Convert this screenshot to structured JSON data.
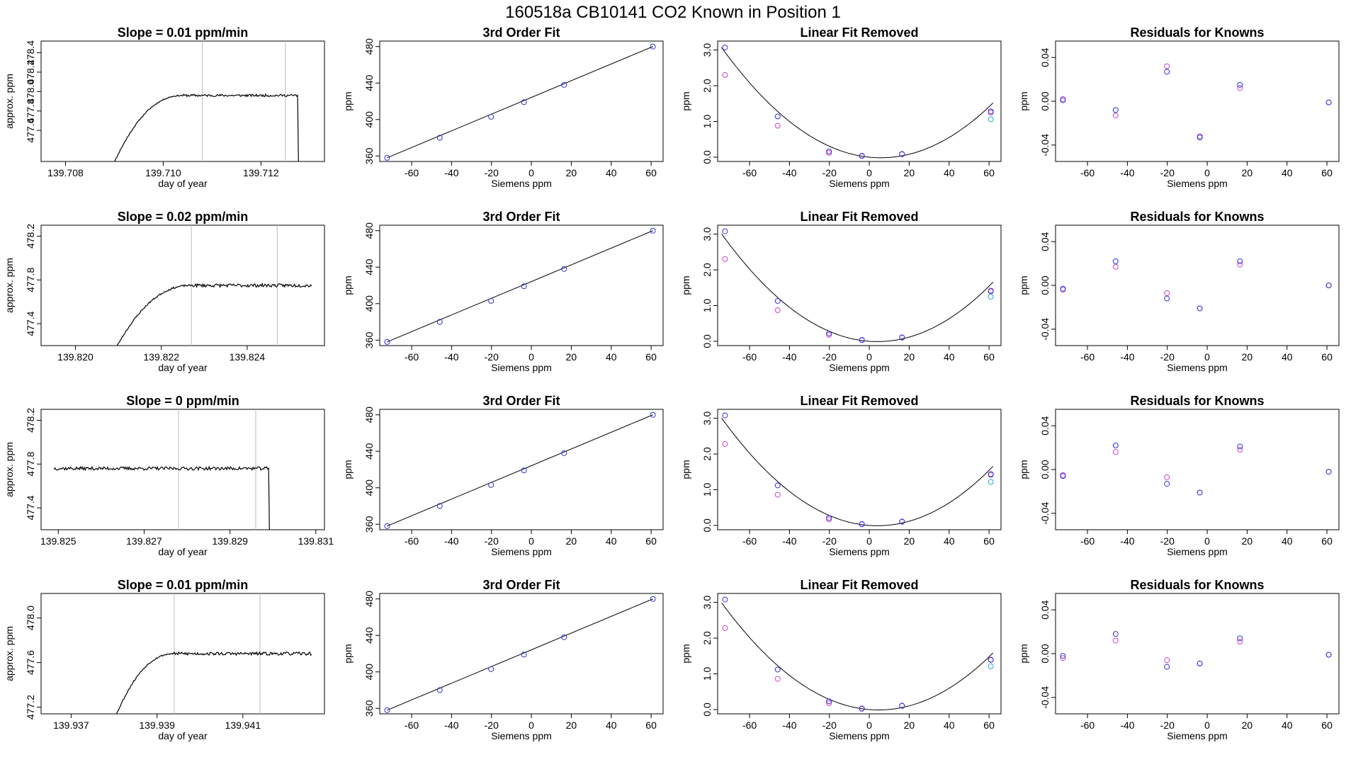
{
  "figure": {
    "title": "160518a     CB10141    CO2 Known in Position  1"
  },
  "colors": {
    "blue": "#3333dd",
    "magenta": "#cc44cc",
    "cyan": "#22aacc",
    "trace": "#000000",
    "trace_highlight": "#ff4444",
    "vline": "#bbbbbb"
  },
  "chart_data": [
    {
      "row": 0,
      "col": 0,
      "type": "line",
      "title": "Slope =  0.01  ppm/min",
      "xlabel": "day of year",
      "ylabel": "approx. ppm",
      "xlim": [
        139.7075,
        139.7133
      ],
      "ylim": [
        477.28,
        478.52
      ],
      "xticks": [
        139.708,
        139.71,
        139.712
      ],
      "xticklabels": [
        "139.708",
        "139.710",
        "139.712"
      ],
      "yticks": [
        477.6,
        477.8,
        478.0,
        478.2,
        478.4
      ],
      "yticklabels": [
        "477.6",
        "477.8",
        "478.0",
        "478.2",
        "478.4"
      ],
      "vlines": [
        139.7108,
        139.7125
      ],
      "trace": {
        "kind": "drop",
        "x_start": 139.70895,
        "rise_end": 139.7104,
        "plateau": 477.96,
        "drop_x": 139.71275,
        "noise": 0.012,
        "seed": 11
      }
    },
    {
      "row": 0,
      "col": 1,
      "type": "scatter",
      "title": "3rd Order Fit",
      "xlabel": "Siemens ppm",
      "ylabel": "ppm",
      "xlim": [
        -76,
        66
      ],
      "ylim": [
        354,
        486
      ],
      "xticks": [
        -60,
        -40,
        -20,
        0,
        20,
        40,
        60
      ],
      "xticklabels": [
        "-60",
        "-40",
        "-20",
        "0",
        "20",
        "40",
        "60"
      ],
      "yticks": [
        360,
        400,
        440,
        480
      ],
      "yticklabels": [
        "360",
        "400",
        "440",
        "480"
      ],
      "points_x": [
        -72.3,
        -45.9,
        -20.2,
        -3.7,
        16.4,
        60.9
      ],
      "points_y": [
        358,
        380,
        403,
        419,
        438,
        480
      ],
      "line": [
        [
          -72.3,
          358
        ],
        [
          60.9,
          480
        ]
      ]
    },
    {
      "row": 0,
      "col": 2,
      "type": "scatter",
      "title": "Linear Fit Removed",
      "xlabel": "Siemens ppm",
      "ylabel": "ppm",
      "xlim": [
        -76,
        66
      ],
      "ylim": [
        -0.12,
        3.25
      ],
      "xticks": [
        -60,
        -40,
        -20,
        0,
        20,
        40,
        60
      ],
      "xticklabels": [
        "-60",
        "-40",
        "-20",
        "0",
        "20",
        "40",
        "60"
      ],
      "yticks": [
        0,
        1,
        2,
        3
      ],
      "yticklabels": [
        "0.0",
        "1.0",
        "2.0",
        "3.0"
      ],
      "points_x": [
        -72.3,
        -45.9,
        -20.2,
        -3.7,
        16.4,
        60.9
      ],
      "blue_y": [
        3.07,
        1.14,
        0.16,
        0.04,
        0.09,
        1.28
      ],
      "magenta_y": [
        2.3,
        0.88,
        0.12,
        0.03,
        0.08,
        1.25
      ],
      "cyan": {
        "x": 60.9,
        "y": 1.06
      },
      "curve": {
        "a": 0.000485,
        "b": -0.0056,
        "c": 0.0
      }
    },
    {
      "row": 0,
      "col": 3,
      "type": "scatter",
      "title": "Residuals for Knowns",
      "xlabel": "Siemens ppm",
      "ylabel": "ppm",
      "xlim": [
        -76,
        66
      ],
      "ylim": [
        -0.055,
        0.055
      ],
      "xticks": [
        -60,
        -40,
        -20,
        0,
        20,
        40,
        60
      ],
      "xticklabels": [
        "-60",
        "-40",
        "-20",
        "0",
        "20",
        "40",
        "60"
      ],
      "yticks": [
        -0.04,
        0,
        0.04
      ],
      "yticklabels": [
        "-0.04",
        "0.00",
        "0.04"
      ],
      "points_x": [
        -72.3,
        -45.9,
        -20.2,
        -3.7,
        16.4,
        60.9
      ],
      "blue_y": [
        0.001,
        -0.008,
        0.027,
        -0.033,
        0.015,
        -0.001
      ],
      "magenta_y": [
        0.002,
        -0.013,
        0.032,
        -0.032,
        0.012,
        -0.001
      ]
    },
    {
      "row": 1,
      "col": 0,
      "type": "line",
      "title": "Slope =  0.02  ppm/min",
      "xlabel": "day of year",
      "ylabel": "approx. ppm",
      "xlim": [
        139.8192,
        139.8258
      ],
      "ylim": [
        477.2,
        478.3
      ],
      "xticks": [
        139.82,
        139.822,
        139.824
      ],
      "xticklabels": [
        "139.820",
        "139.822",
        "139.824"
      ],
      "yticks": [
        477.4,
        477.8,
        478.2
      ],
      "yticklabels": [
        "477.4",
        "477.8",
        "478.2"
      ],
      "vlines": [
        139.8227,
        139.8247
      ],
      "trace": {
        "kind": "flat_end",
        "x_start": 139.8209,
        "rise_end": 139.8227,
        "plateau": 477.75,
        "end_x": 139.8255,
        "noise": 0.015,
        "seed": 23
      }
    },
    {
      "row": 1,
      "col": 1,
      "type": "scatter",
      "title": "3rd Order Fit",
      "xlabel": "Siemens ppm",
      "ylabel": "ppm",
      "xlim": [
        -76,
        66
      ],
      "ylim": [
        354,
        486
      ],
      "xticks": [
        -60,
        -40,
        -20,
        0,
        20,
        40,
        60
      ],
      "xticklabels": [
        "-60",
        "-40",
        "-20",
        "0",
        "20",
        "40",
        "60"
      ],
      "yticks": [
        360,
        400,
        440,
        480
      ],
      "yticklabels": [
        "360",
        "400",
        "440",
        "480"
      ],
      "points_x": [
        -72.3,
        -45.9,
        -20.2,
        -3.7,
        16.4,
        60.9
      ],
      "points_y": [
        358,
        380,
        403,
        419,
        438,
        480
      ],
      "line": [
        [
          -72.3,
          358
        ],
        [
          60.9,
          480
        ]
      ]
    },
    {
      "row": 1,
      "col": 2,
      "type": "scatter",
      "title": "Linear Fit Removed",
      "xlabel": "Siemens ppm",
      "ylabel": "ppm",
      "xlim": [
        -76,
        66
      ],
      "ylim": [
        -0.12,
        3.25
      ],
      "xticks": [
        -60,
        -40,
        -20,
        0,
        20,
        40,
        60
      ],
      "xticklabels": [
        "-60",
        "-40",
        "-20",
        "0",
        "20",
        "40",
        "60"
      ],
      "yticks": [
        0,
        1,
        2,
        3
      ],
      "yticklabels": [
        "0.0",
        "1.0",
        "2.0",
        "3.0"
      ],
      "points_x": [
        -72.3,
        -45.9,
        -20.2,
        -3.7,
        16.4,
        60.9
      ],
      "blue_y": [
        3.08,
        1.13,
        0.22,
        0.04,
        0.11,
        1.4
      ],
      "magenta_y": [
        2.3,
        0.87,
        0.18,
        0.03,
        0.1,
        1.42
      ],
      "cyan": {
        "x": 60.9,
        "y": 1.25
      },
      "curve": {
        "a": 0.000495,
        "b": -0.004,
        "c": 0.0
      }
    },
    {
      "row": 1,
      "col": 3,
      "type": "scatter",
      "title": "Residuals for Knowns",
      "xlabel": "Siemens ppm",
      "ylabel": "ppm",
      "xlim": [
        -76,
        66
      ],
      "ylim": [
        -0.055,
        0.055
      ],
      "xticks": [
        -60,
        -40,
        -20,
        0,
        20,
        40,
        60
      ],
      "xticklabels": [
        "-60",
        "-40",
        "-20",
        "0",
        "20",
        "40",
        "60"
      ],
      "yticks": [
        -0.04,
        0,
        0.04
      ],
      "yticklabels": [
        "-0.04",
        "0.00",
        "0.04"
      ],
      "points_x": [
        -72.3,
        -45.9,
        -20.2,
        -3.7,
        16.4,
        60.9
      ],
      "blue_y": [
        -0.003,
        0.022,
        -0.012,
        -0.021,
        0.022,
        0.0
      ],
      "magenta_y": [
        -0.004,
        0.017,
        -0.007,
        -0.021,
        0.019,
        0.0
      ]
    },
    {
      "row": 2,
      "col": 0,
      "type": "line",
      "title": "Slope =  0  ppm/min",
      "xlabel": "day of year",
      "ylabel": "approx. ppm",
      "xlim": [
        139.8246,
        139.8312
      ],
      "ylim": [
        477.2,
        478.3
      ],
      "xticks": [
        139.825,
        139.827,
        139.829,
        139.831
      ],
      "xticklabels": [
        "139.825",
        "139.827",
        "139.829",
        "139.831"
      ],
      "vlines": [
        139.8278,
        139.8296
      ],
      "yticks": [
        477.4,
        477.8,
        478.2
      ],
      "yticklabels": [
        "477.4",
        "477.8",
        "478.2"
      ],
      "trace": {
        "kind": "flat_drop",
        "x_start": 139.8249,
        "plateau": 477.76,
        "drop_x": 139.8299,
        "noise": 0.015,
        "seed": 37
      }
    },
    {
      "row": 2,
      "col": 1,
      "type": "scatter",
      "title": "3rd Order Fit",
      "xlabel": "Siemens ppm",
      "ylabel": "ppm",
      "xlim": [
        -76,
        66
      ],
      "ylim": [
        354,
        486
      ],
      "xticks": [
        -60,
        -40,
        -20,
        0,
        20,
        40,
        60
      ],
      "xticklabels": [
        "-60",
        "-40",
        "-20",
        "0",
        "20",
        "40",
        "60"
      ],
      "yticks": [
        360,
        400,
        440,
        480
      ],
      "yticklabels": [
        "360",
        "400",
        "440",
        "480"
      ],
      "points_x": [
        -72.3,
        -45.9,
        -20.2,
        -3.7,
        16.4,
        60.9
      ],
      "points_y": [
        358,
        380,
        403,
        419,
        438,
        480
      ],
      "line": [
        [
          -72.3,
          358
        ],
        [
          60.9,
          480
        ]
      ]
    },
    {
      "row": 2,
      "col": 2,
      "type": "scatter",
      "title": "Linear Fit Removed",
      "xlabel": "Siemens ppm",
      "ylabel": "ppm",
      "xlim": [
        -76,
        66
      ],
      "ylim": [
        -0.12,
        3.25
      ],
      "xticks": [
        -60,
        -40,
        -20,
        0,
        20,
        40,
        60
      ],
      "xticklabels": [
        "-60",
        "-40",
        "-20",
        "0",
        "20",
        "40",
        "60"
      ],
      "yticks": [
        0,
        1,
        2,
        3
      ],
      "yticklabels": [
        "0.0",
        "1.0",
        "2.0",
        "3.0"
      ],
      "points_x": [
        -72.3,
        -45.9,
        -20.2,
        -3.7,
        16.4,
        60.9
      ],
      "blue_y": [
        3.08,
        1.12,
        0.21,
        0.04,
        0.11,
        1.42
      ],
      "magenta_y": [
        2.28,
        0.86,
        0.17,
        0.03,
        0.1,
        1.44
      ],
      "cyan": {
        "x": 60.9,
        "y": 1.22
      },
      "curve": {
        "a": 0.000495,
        "b": -0.004,
        "c": 0.0
      }
    },
    {
      "row": 2,
      "col": 3,
      "type": "scatter",
      "title": "Residuals for Knowns",
      "xlabel": "Siemens ppm",
      "ylabel": "ppm",
      "xlim": [
        -76,
        66
      ],
      "ylim": [
        -0.055,
        0.055
      ],
      "xticks": [
        -60,
        -40,
        -20,
        0,
        20,
        40,
        60
      ],
      "xticklabels": [
        "-60",
        "-40",
        "-20",
        "0",
        "20",
        "40",
        "60"
      ],
      "yticks": [
        -0.04,
        0,
        0.04
      ],
      "yticklabels": [
        "-0.04",
        "0.00",
        "0.04"
      ],
      "points_x": [
        -72.3,
        -45.9,
        -20.2,
        -3.7,
        16.4,
        60.9
      ],
      "blue_y": [
        -0.006,
        0.022,
        -0.013,
        -0.021,
        0.021,
        -0.002
      ],
      "magenta_y": [
        -0.005,
        0.016,
        -0.007,
        -0.021,
        0.018,
        -0.002
      ]
    },
    {
      "row": 3,
      "col": 0,
      "type": "line",
      "title": "Slope =  0.01  ppm/min",
      "xlabel": "day of year",
      "ylabel": "approx. ppm",
      "xlim": [
        139.9363,
        139.9429
      ],
      "ylim": [
        477.14,
        478.22
      ],
      "xticks": [
        139.937,
        139.939,
        139.941
      ],
      "xticklabels": [
        "139.937",
        "139.939",
        "139.941"
      ],
      "yticks": [
        477.2,
        477.6,
        478.0
      ],
      "yticklabels": [
        "477.2",
        "477.6",
        "478.0"
      ],
      "vlines": [
        139.9394,
        139.9414
      ],
      "trace": {
        "kind": "flat_end",
        "x_start": 139.938,
        "rise_end": 139.9394,
        "plateau": 477.68,
        "end_x": 139.9426,
        "noise": 0.014,
        "seed": 53
      }
    },
    {
      "row": 3,
      "col": 1,
      "type": "scatter",
      "title": "3rd Order Fit",
      "xlabel": "Siemens ppm",
      "ylabel": "ppm",
      "xlim": [
        -76,
        66
      ],
      "ylim": [
        354,
        486
      ],
      "xticks": [
        -60,
        -40,
        -20,
        0,
        20,
        40,
        60
      ],
      "xticklabels": [
        "-60",
        "-40",
        "-20",
        "0",
        "20",
        "40",
        "60"
      ],
      "yticks": [
        360,
        400,
        440,
        480
      ],
      "yticklabels": [
        "360",
        "400",
        "440",
        "480"
      ],
      "points_x": [
        -72.3,
        -45.9,
        -20.2,
        -3.7,
        16.4,
        60.9
      ],
      "points_y": [
        358,
        380,
        403,
        419,
        438,
        480
      ],
      "line": [
        [
          -72.3,
          358
        ],
        [
          60.9,
          480
        ]
      ]
    },
    {
      "row": 3,
      "col": 2,
      "type": "scatter",
      "title": "Linear Fit Removed",
      "xlabel": "Siemens ppm",
      "ylabel": "ppm",
      "xlim": [
        -76,
        66
      ],
      "ylim": [
        -0.12,
        3.25
      ],
      "xticks": [
        -60,
        -40,
        -20,
        0,
        20,
        40,
        60
      ],
      "xticklabels": [
        "-60",
        "-40",
        "-20",
        "0",
        "20",
        "40",
        "60"
      ],
      "yticks": [
        0,
        1,
        2,
        3
      ],
      "yticklabels": [
        "0.0",
        "1.0",
        "2.0",
        "3.0"
      ],
      "points_x": [
        -72.3,
        -45.9,
        -20.2,
        -3.7,
        16.4,
        60.9
      ],
      "blue_y": [
        3.08,
        1.12,
        0.23,
        0.03,
        0.11,
        1.39
      ],
      "magenta_y": [
        2.28,
        0.86,
        0.18,
        0.02,
        0.1,
        1.4
      ],
      "cyan": {
        "x": 60.9,
        "y": 1.21
      },
      "curve": {
        "a": 0.000485,
        "b": -0.0045,
        "c": 0.0
      }
    },
    {
      "row": 3,
      "col": 3,
      "type": "scatter",
      "title": "Residuals for Knowns",
      "xlabel": "Siemens ppm",
      "ylabel": "ppm",
      "xlim": [
        -76,
        66
      ],
      "ylim": [
        -0.055,
        0.055
      ],
      "xticks": [
        -60,
        -40,
        -20,
        0,
        20,
        40,
        60
      ],
      "xticklabels": [
        "-60",
        "-40",
        "-20",
        "0",
        "20",
        "40",
        "60"
      ],
      "yticks": [
        -0.04,
        0,
        0.04
      ],
      "yticklabels": [
        "-0.04",
        "0.00",
        "0.04"
      ],
      "points_x": [
        -72.3,
        -45.9,
        -20.2,
        -3.7,
        16.4,
        60.9
      ],
      "blue_y": [
        -0.002,
        0.018,
        -0.012,
        -0.009,
        0.014,
        -0.001
      ],
      "magenta_y": [
        -0.004,
        0.012,
        -0.006,
        -0.009,
        0.011,
        -0.001
      ]
    }
  ]
}
